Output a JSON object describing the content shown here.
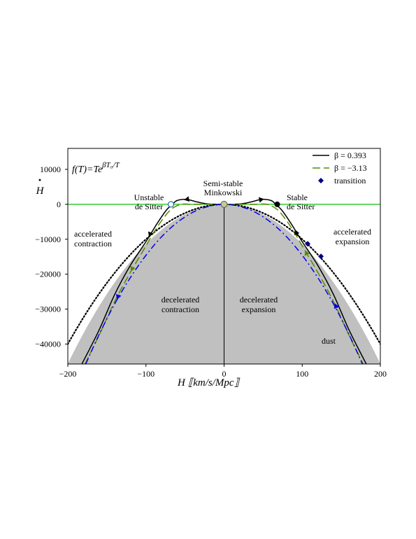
{
  "chart_data": {
    "type": "line",
    "formula": {
      "base": "f(T)=Te",
      "exponent": "βT₀/T"
    },
    "xlabel": {
      "H": "H",
      "units": "⟦km/s/Mpc⟧"
    },
    "ylabel": {
      "symbol": "H",
      "dot": "·"
    },
    "xlim": [
      -200,
      200
    ],
    "ylim": [
      -45700,
      16000
    ],
    "xticks": [
      -200,
      -100,
      0,
      100,
      200
    ],
    "xtick_labels": [
      "−200",
      "−100",
      "0",
      "100",
      "200"
    ],
    "yticks": [
      10000,
      0,
      -10000,
      -20000,
      -30000,
      -40000
    ],
    "ytick_labels": [
      "10000",
      "0",
      "−10000",
      "−20000",
      "−30000",
      "−40000"
    ],
    "shaded_region": {
      "boundary": "Hdot = -1.14 H^2",
      "color": "#c0c0c0"
    },
    "series": [
      {
        "name": "β = 0.393",
        "color": "#000000",
        "style": "solid",
        "points": [
          [
            -182,
            -45700
          ],
          [
            -160,
            -36000
          ],
          [
            -140,
            -25800
          ],
          [
            -120,
            -17500
          ],
          [
            -100,
            -10700
          ],
          [
            -86,
            -5600
          ],
          [
            -74,
            -1700
          ],
          [
            -66,
            0
          ],
          [
            -60,
            1100
          ],
          [
            -48,
            1400
          ],
          [
            -35,
            700
          ],
          [
            -20,
            100
          ],
          [
            0,
            0
          ],
          [
            20,
            100
          ],
          [
            35,
            700
          ],
          [
            48,
            1400
          ],
          [
            60,
            1100
          ],
          [
            66,
            0
          ],
          [
            74,
            -1700
          ],
          [
            86,
            -5600
          ],
          [
            100,
            -10700
          ],
          [
            120,
            -17500
          ],
          [
            140,
            -25800
          ],
          [
            160,
            -36000
          ],
          [
            182,
            -45700
          ]
        ]
      },
      {
        "name": "β = −3.13",
        "color": "#558b00",
        "style": "dashed",
        "points": [
          [
            -178,
            -45700
          ],
          [
            -160,
            -37500
          ],
          [
            -140,
            -27800
          ],
          [
            -120,
            -19500
          ],
          [
            -105,
            -13800
          ],
          [
            -92,
            -8800
          ],
          [
            -80,
            -4700
          ],
          [
            -68,
            -1500
          ],
          [
            -55,
            0
          ],
          [
            -40,
            0
          ],
          [
            0,
            0
          ],
          [
            40,
            0
          ],
          [
            55,
            0
          ],
          [
            68,
            -1500
          ],
          [
            80,
            -4700
          ],
          [
            92,
            -8800
          ],
          [
            105,
            -13800
          ],
          [
            120,
            -19500
          ],
          [
            140,
            -27800
          ],
          [
            160,
            -37500
          ],
          [
            178,
            -45700
          ]
        ]
      },
      {
        "name": "dust",
        "color": "#0000ee",
        "style": "dashdot",
        "points": [
          [
            -177,
            -45700
          ],
          [
            -160,
            -37300
          ],
          [
            -140,
            -28500
          ],
          [
            -120,
            -21000
          ],
          [
            -100,
            -14600
          ],
          [
            -80,
            -9300
          ],
          [
            -60,
            -5200
          ],
          [
            -40,
            -2300
          ],
          [
            -20,
            -600
          ],
          [
            0,
            0
          ],
          [
            20,
            -600
          ],
          [
            40,
            -2300
          ],
          [
            60,
            -5200
          ],
          [
            80,
            -9300
          ],
          [
            100,
            -14600
          ],
          [
            120,
            -21000
          ],
          [
            140,
            -28500
          ],
          [
            160,
            -37300
          ],
          [
            177,
            -45700
          ]
        ]
      }
    ],
    "bound_curve": {
      "style": "dotted",
      "color": "#000000",
      "coef": -1.0
    },
    "horizontal_line": {
      "y": 0,
      "color": "#33cc33"
    },
    "vertical_line": {
      "x": 0,
      "color": "#000000"
    },
    "transition_points": {
      "name": "transition",
      "color": "#000080",
      "points": [
        [
          107,
          -11300
        ],
        [
          124,
          -14900
        ]
      ]
    },
    "fixed_points": [
      {
        "label": "Unstable de Sitter",
        "label_lines": [
          "Unstable",
          "de Sitter"
        ],
        "x": -68,
        "y": 0,
        "marker": "open-circle",
        "color": "#2a6fb0"
      },
      {
        "label": "Semi-stable Minkowski",
        "label_lines": [
          "Semi-stable",
          "Minkowski"
        ],
        "x": 0,
        "y": 0,
        "marker": "gray-circle",
        "color": "#c8c896"
      },
      {
        "label": "Stable de Sitter",
        "label_lines": [
          "Stable",
          "de Sitter"
        ],
        "x": 68,
        "y": 0,
        "marker": "filled-circle",
        "color": "#000000"
      }
    ],
    "region_labels": [
      {
        "lines": [
          "accelerated",
          "contraction"
        ]
      },
      {
        "lines": [
          "accelerated",
          "expansion"
        ]
      },
      {
        "lines": [
          "decelerated",
          "contraction"
        ]
      },
      {
        "lines": [
          "decelerated",
          "expansion"
        ]
      },
      {
        "lines": [
          "dust"
        ],
        "color": "#0000ee"
      }
    ],
    "legend": {
      "placement": "top-right",
      "entries": [
        "β = 0.393",
        "β = −3.13",
        "transition"
      ]
    }
  }
}
